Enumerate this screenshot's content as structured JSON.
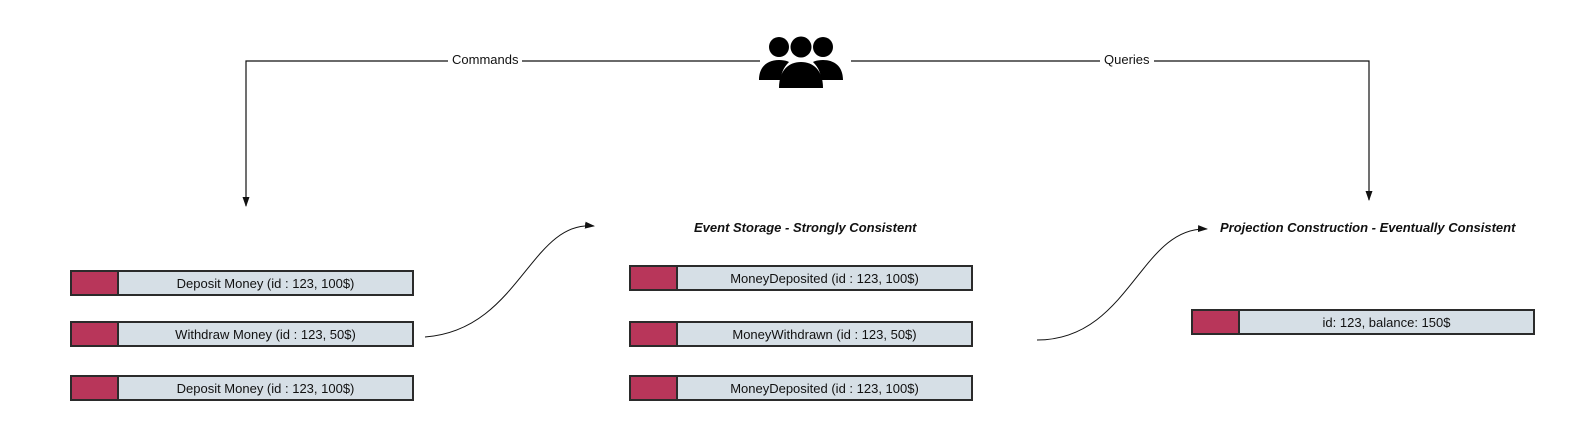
{
  "diagram": {
    "edges": {
      "commands_label": "Commands",
      "queries_label": "Queries"
    },
    "actor": {
      "icon": "users-group-icon"
    },
    "command_column": {
      "items": [
        {
          "label": "Deposit Money (id : 123, 100$)"
        },
        {
          "label": "Withdraw Money (id : 123, 50$)"
        },
        {
          "label": "Deposit Money (id : 123, 100$)"
        }
      ]
    },
    "event_column": {
      "title": "Event Storage - Strongly Consistent",
      "items": [
        {
          "label": "MoneyDeposited (id : 123, 100$)"
        },
        {
          "label": "MoneyWithdrawn (id : 123, 50$)"
        },
        {
          "label": "MoneyDeposited (id : 123, 100$)"
        }
      ]
    },
    "projection_column": {
      "title": "Projection Construction - Eventually Consistent",
      "items": [
        {
          "label": "id: 123, balance: 150$"
        }
      ]
    },
    "colors": {
      "swatch": "#b8365a",
      "block_fill": "#d6dfe6",
      "border": "#2b2b2b",
      "line": "#111111"
    }
  }
}
